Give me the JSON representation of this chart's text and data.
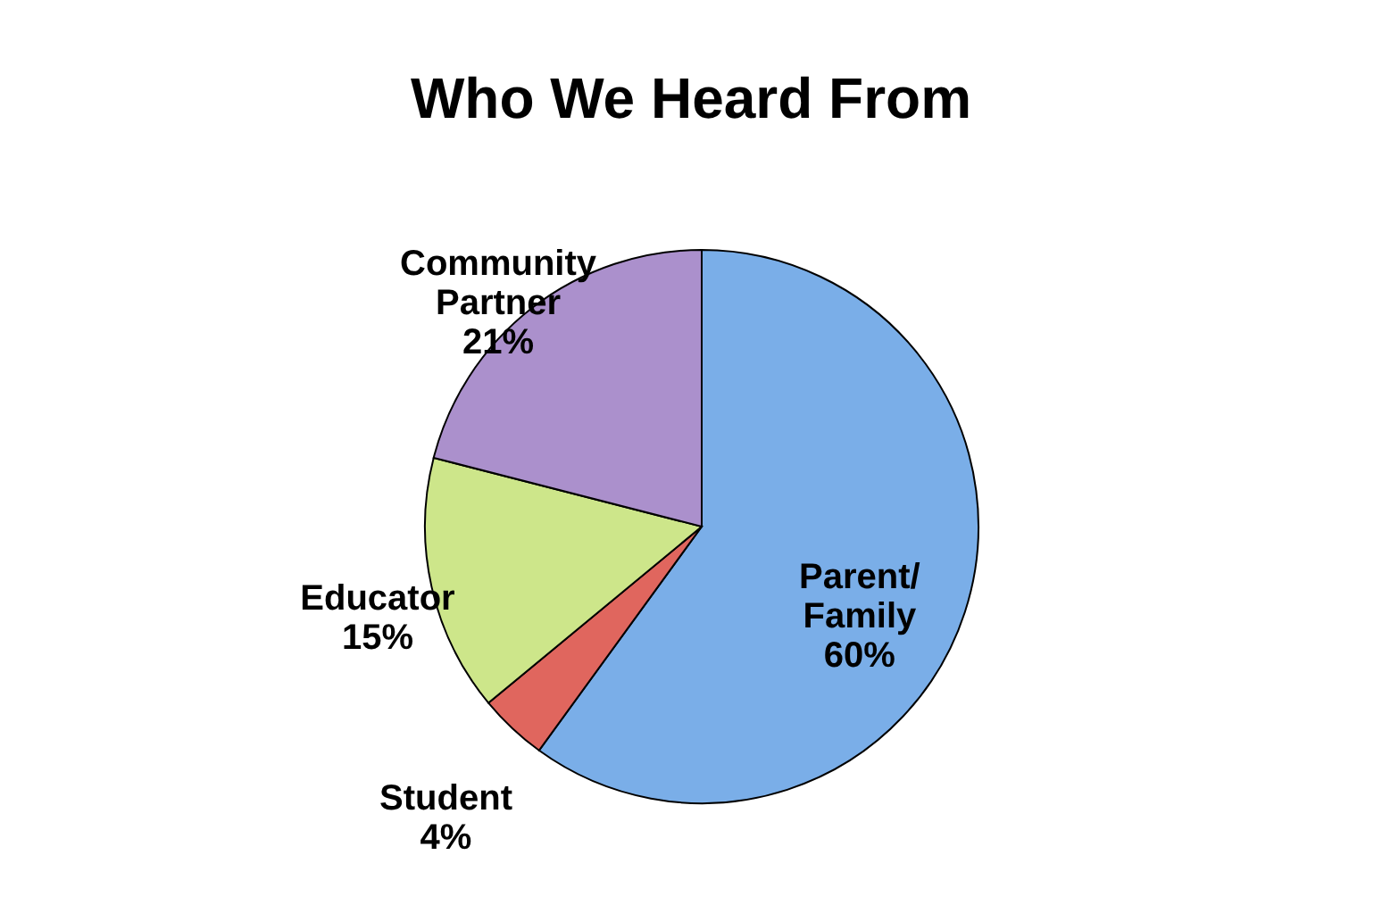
{
  "chart_data": {
    "type": "pie",
    "title": "Who We Heard From",
    "categories": [
      "Parent/ Family",
      "Student",
      "Educator",
      "Community Partner"
    ],
    "values": [
      60,
      4,
      15,
      21
    ],
    "value_labels": [
      "60%",
      "4%",
      "15%",
      "21%"
    ],
    "colors": [
      "#7aaee8",
      "#e0665e",
      "#cde68a",
      "#ab90cc"
    ]
  }
}
